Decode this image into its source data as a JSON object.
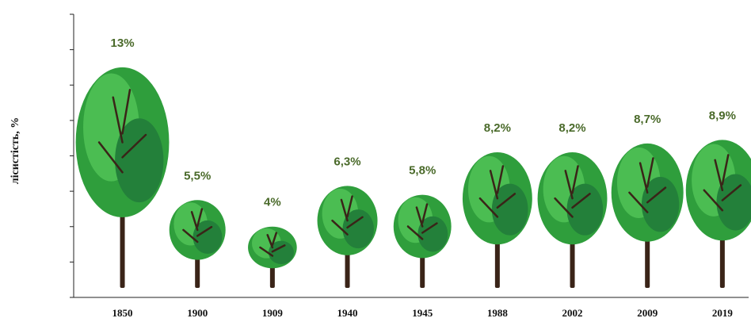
{
  "chart_data": {
    "type": "pictorial-bar",
    "y_label": "лісистість, %",
    "categories": [
      "1850",
      "1900",
      "1909",
      "1940",
      "1945",
      "1988",
      "2002",
      "2009",
      "2019"
    ],
    "values": [
      13,
      5.5,
      4,
      6.3,
      5.8,
      8.2,
      8.2,
      8.7,
      8.9
    ],
    "value_labels": [
      "13%",
      "5,5%",
      "4%",
      "6,3%",
      "5,8%",
      "8,2%",
      "8,2%",
      "8,7%",
      "8,9%"
    ],
    "color": "#2f9e3c",
    "ylim": [
      0,
      16
    ],
    "yticks": [
      0,
      2,
      4,
      6,
      8,
      10,
      12,
      14,
      16
    ]
  }
}
